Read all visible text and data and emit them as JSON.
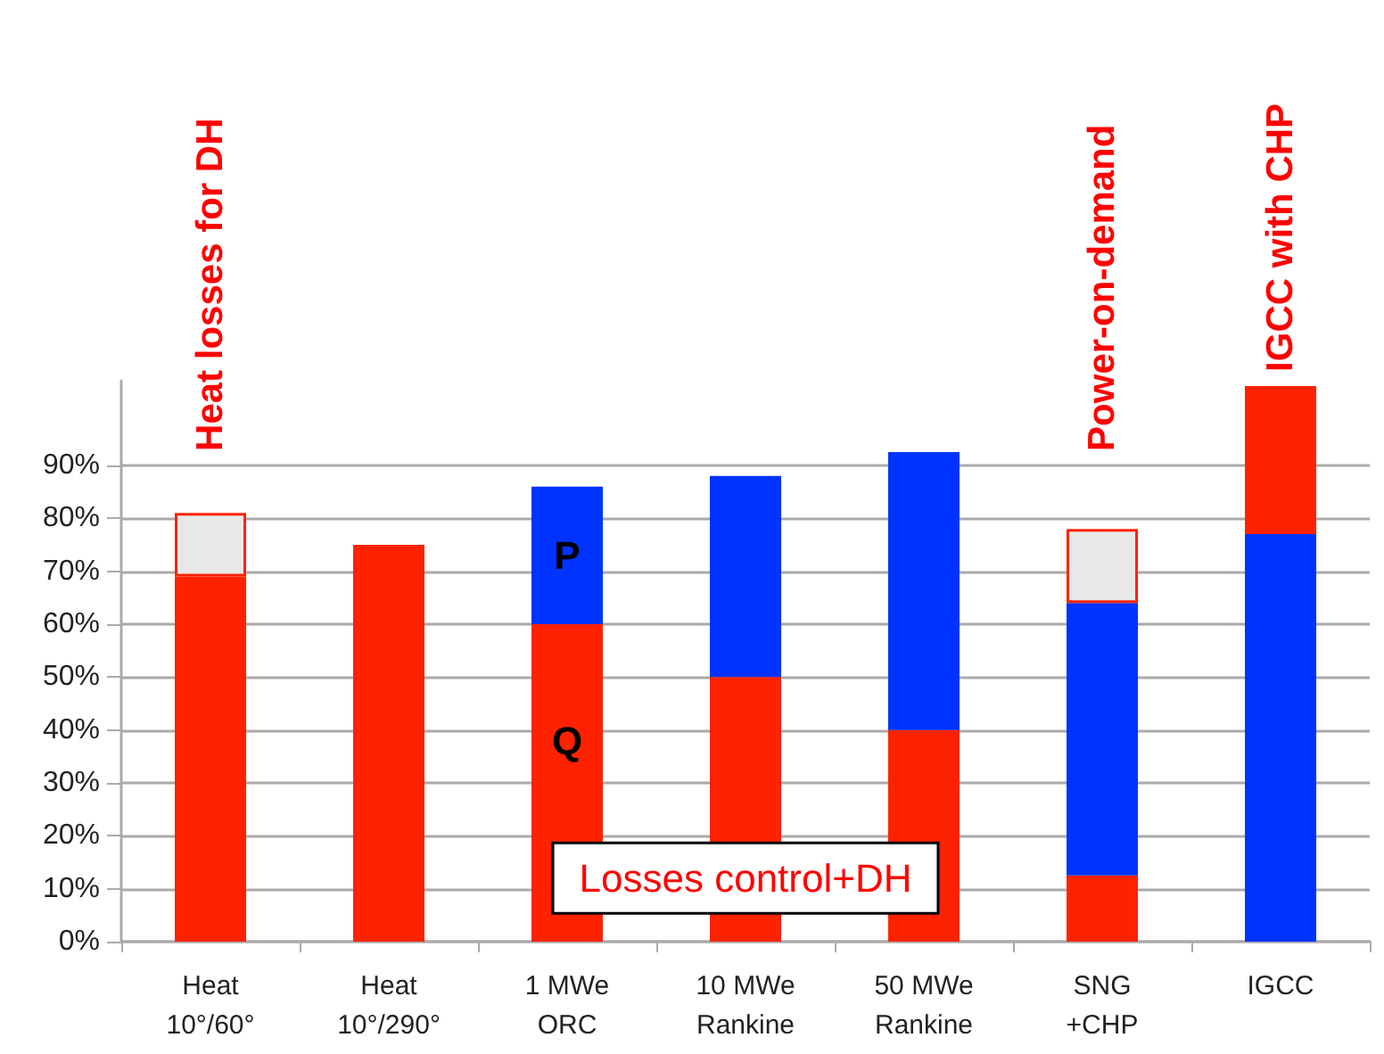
{
  "chart_data": {
    "type": "bar",
    "stacked": true,
    "categories": [
      "Heat\n10°/60°",
      "Heat\n10°/290°",
      "1 MWe\nORC",
      "10 MWe\nRankine",
      "50 MWe\nRankine",
      "SNG\n+CHP",
      "IGCC"
    ],
    "series": [
      {
        "color": "#ff2200",
        "values": [
          69,
          75,
          60,
          50,
          40,
          12.5,
          null
        ]
      },
      {
        "color": "#0033ff",
        "values": [
          null,
          null,
          26,
          38,
          52.5,
          51.5,
          77
        ]
      },
      {
        "color": "#e8e8e8",
        "values": [
          12,
          null,
          null,
          null,
          null,
          14,
          null
        ]
      },
      {
        "color": "#ff2200",
        "values": [
          null,
          null,
          null,
          null,
          null,
          null,
          28
        ]
      }
    ],
    "ylim": [
      0,
      106
    ],
    "yticks": [
      {
        "value": 0,
        "label": "0%"
      },
      {
        "value": 10,
        "label": "10%"
      },
      {
        "value": 20,
        "label": "20%"
      },
      {
        "value": 30,
        "label": "30%"
      },
      {
        "value": 40,
        "label": "40%"
      },
      {
        "value": 50,
        "label": "50%"
      },
      {
        "value": 60,
        "label": "60%"
      },
      {
        "value": 70,
        "label": "70%"
      },
      {
        "value": 80,
        "label": "80%"
      },
      {
        "value": 90,
        "label": "90%"
      }
    ],
    "grid": "y",
    "annotations": [
      "Heat losses for DH",
      "Power-on-demand",
      "IGCC with CHP",
      "P",
      "Q",
      "Losses control+DH"
    ]
  }
}
